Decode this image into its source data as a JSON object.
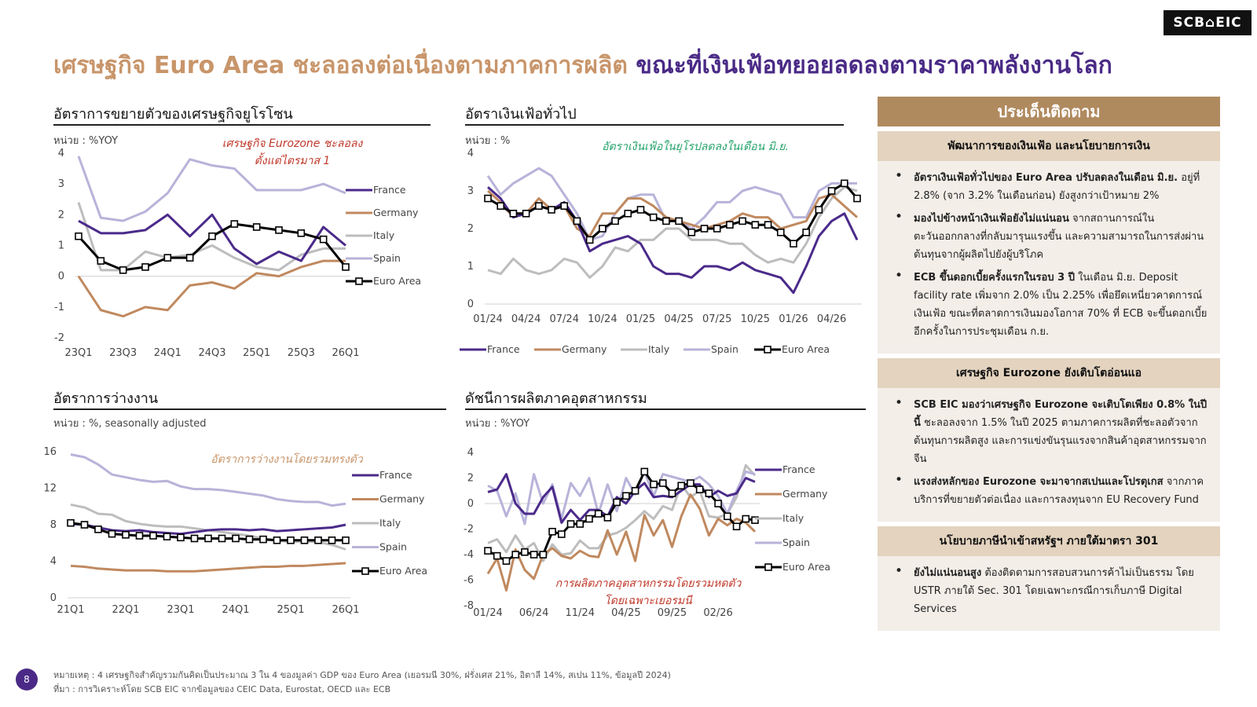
{
  "logo": "SCB⌂EIC",
  "title": {
    "part1": "เศรษฐกิจ Euro Area ชะลอลงต่อเนื่องตามภาคการผลิต",
    "part2": "ขณะที่เงินเฟ้อทยอยลดลงตามราคาพลังงานโลก"
  },
  "panels": {
    "gdp": {
      "title": "อัตราการขยายตัวของเศรษฐกิจยูโรโซน",
      "unit": "หน่วย : %YOY",
      "annotation": [
        "เศรษฐกิจ Eurozone ชะลอลง",
        "ตั้งแต่ไตรมาส 1"
      ]
    },
    "cpi": {
      "title": "อัตราเงินเฟ้อทั่วไป",
      "unit": "หน่วย : %",
      "annotation": [
        "อัตราเงินเฟ้อในยุโรปลดลงในเดือน มิ.ย."
      ]
    },
    "unemp": {
      "title": "อัตราการว่างงาน",
      "unit": "หน่วย : %, seasonally adjusted",
      "annotation": [
        "อัตราการว่างงานโดยรวมทรงตัว"
      ]
    },
    "ip": {
      "title": "ดัชนีการผลิตภาคอุตสาหกรรม",
      "unit": "หน่วย : %YOY",
      "annotation": [
        "การผลิตภาคอุตสาหกรรมโดยรวมหดตัว",
        "โดยเฉพาะเยอรมนี"
      ]
    }
  },
  "colors": {
    "France": "#4b2a8a",
    "Germany": "#c0895f",
    "Italy": "#bdbdbd",
    "Spain": "#b7b3d9",
    "Euro Area": "#000000"
  },
  "chart_data": [
    {
      "id": "gdp",
      "type": "line",
      "x": [
        "23Q1",
        "23Q2",
        "23Q3",
        "23Q4",
        "24Q1",
        "24Q2",
        "24Q3",
        "24Q4",
        "25Q1",
        "25Q2",
        "25Q3",
        "25Q4",
        "26Q1"
      ],
      "xticks": [
        "23Q1",
        "23Q3",
        "24Q1",
        "24Q3",
        "25Q1",
        "25Q3",
        "26Q1"
      ],
      "ylim": [
        -2,
        4
      ],
      "yticks": [
        4,
        3,
        2,
        1,
        0,
        -1,
        -2
      ],
      "legend_position": "right",
      "series": [
        {
          "name": "France",
          "values": [
            1.8,
            1.4,
            1.4,
            1.5,
            2.0,
            1.3,
            2.0,
            0.9,
            0.4,
            0.8,
            0.5,
            1.6,
            1.0
          ]
        },
        {
          "name": "Germany",
          "values": [
            0.0,
            -1.1,
            -1.3,
            -1.0,
            -1.1,
            -0.3,
            -0.2,
            -0.4,
            0.1,
            0.0,
            0.3,
            0.5,
            0.5
          ]
        },
        {
          "name": "Italy",
          "values": [
            2.4,
            0.2,
            0.2,
            0.8,
            0.6,
            0.7,
            1.0,
            0.6,
            0.3,
            0.2,
            0.7,
            0.9,
            0.9
          ]
        },
        {
          "name": "Spain",
          "values": [
            3.9,
            1.9,
            1.8,
            2.1,
            2.7,
            3.8,
            3.6,
            3.5,
            2.8,
            2.8,
            2.8,
            3.0,
            2.7
          ]
        },
        {
          "name": "Euro Area",
          "values": [
            1.3,
            0.5,
            0.2,
            0.3,
            0.6,
            0.6,
            1.3,
            1.7,
            1.6,
            1.5,
            1.4,
            1.2,
            0.3
          ]
        }
      ]
    },
    {
      "id": "cpi",
      "type": "line",
      "x": [
        "01/24",
        "02/24",
        "03/24",
        "04/24",
        "05/24",
        "06/24",
        "07/24",
        "08/24",
        "09/24",
        "10/24",
        "11/24",
        "12/24",
        "01/25",
        "02/25",
        "03/25",
        "04/25",
        "05/25",
        "06/25",
        "07/25",
        "08/25",
        "09/25",
        "10/25",
        "11/25",
        "12/25",
        "01/26",
        "02/26",
        "03/26",
        "04/26",
        "05/26",
        "06/26"
      ],
      "xticks": [
        "01/24",
        "04/24",
        "07/24",
        "10/24",
        "01/25",
        "04/25",
        "07/25",
        "10/25",
        "01/26",
        "04/26"
      ],
      "ylim": [
        0,
        4
      ],
      "yticks": [
        4,
        3,
        2,
        1,
        0
      ],
      "legend_position": "bottom",
      "series": [
        {
          "name": "France",
          "values": [
            3.1,
            2.8,
            2.3,
            2.4,
            2.6,
            2.5,
            2.7,
            2.2,
            1.4,
            1.6,
            1.7,
            1.8,
            1.6,
            1.0,
            0.8,
            0.8,
            0.7,
            1.0,
            1.0,
            0.9,
            1.1,
            0.9,
            0.8,
            0.7,
            0.3,
            1.0,
            1.8,
            2.2,
            2.4,
            1.7
          ]
        },
        {
          "name": "Germany",
          "values": [
            3.0,
            2.7,
            2.3,
            2.4,
            2.8,
            2.5,
            2.6,
            2.0,
            1.8,
            2.4,
            2.4,
            2.8,
            2.8,
            2.6,
            2.3,
            2.2,
            2.1,
            2.0,
            2.1,
            2.2,
            2.4,
            2.3,
            2.3,
            2.0,
            2.1,
            2.2,
            2.8,
            2.9,
            2.6,
            2.3
          ]
        },
        {
          "name": "Italy",
          "values": [
            0.9,
            0.8,
            1.2,
            0.9,
            0.8,
            0.9,
            1.2,
            1.1,
            0.7,
            1.0,
            1.5,
            1.4,
            1.7,
            1.7,
            2.0,
            2.0,
            1.7,
            1.7,
            1.7,
            1.6,
            1.6,
            1.3,
            1.1,
            1.2,
            1.1,
            1.6,
            2.3,
            2.8,
            3.1,
            3.0
          ]
        },
        {
          "name": "Spain",
          "values": [
            3.4,
            2.9,
            3.2,
            3.4,
            3.6,
            3.4,
            2.9,
            2.4,
            1.7,
            1.8,
            2.4,
            2.8,
            2.9,
            2.9,
            2.2,
            2.2,
            2.0,
            2.3,
            2.7,
            2.7,
            3.0,
            3.1,
            3.0,
            2.9,
            2.3,
            2.3,
            3.0,
            3.2,
            3.2,
            3.2
          ]
        },
        {
          "name": "Euro Area",
          "values": [
            2.8,
            2.6,
            2.4,
            2.4,
            2.6,
            2.5,
            2.6,
            2.2,
            1.7,
            2.0,
            2.2,
            2.4,
            2.5,
            2.3,
            2.2,
            2.2,
            1.9,
            2.0,
            2.0,
            2.1,
            2.2,
            2.1,
            2.1,
            1.9,
            1.6,
            1.9,
            2.5,
            3.0,
            3.2,
            2.8
          ]
        }
      ]
    },
    {
      "id": "unemp",
      "type": "line",
      "x": [
        "21Q1",
        "21Q2",
        "21Q3",
        "21Q4",
        "22Q1",
        "22Q2",
        "22Q3",
        "22Q4",
        "23Q1",
        "23Q2",
        "23Q3",
        "23Q4",
        "24Q1",
        "24Q2",
        "24Q3",
        "24Q4",
        "25Q1",
        "25Q2",
        "25Q3",
        "25Q4",
        "26Q1"
      ],
      "xticks": [
        "21Q1",
        "22Q1",
        "23Q1",
        "24Q1",
        "25Q1",
        "26Q1"
      ],
      "ylim": [
        0,
        16
      ],
      "yticks": [
        16,
        12,
        8,
        4,
        0
      ],
      "legend_position": "right",
      "series": [
        {
          "name": "France",
          "values": [
            8.1,
            8.0,
            7.7,
            7.4,
            7.3,
            7.4,
            7.2,
            7.1,
            7.0,
            7.2,
            7.4,
            7.5,
            7.5,
            7.4,
            7.5,
            7.3,
            7.4,
            7.5,
            7.6,
            7.7,
            8.0
          ]
        },
        {
          "name": "Germany",
          "values": [
            3.5,
            3.4,
            3.2,
            3.1,
            3.0,
            3.0,
            3.0,
            2.9,
            2.9,
            2.9,
            3.0,
            3.1,
            3.2,
            3.3,
            3.4,
            3.4,
            3.5,
            3.5,
            3.6,
            3.7,
            3.8
          ]
        },
        {
          "name": "Italy",
          "values": [
            10.2,
            9.9,
            9.2,
            9.1,
            8.4,
            8.1,
            7.9,
            7.8,
            7.8,
            7.6,
            7.4,
            7.2,
            7.0,
            6.8,
            6.5,
            6.3,
            6.1,
            6.2,
            6.1,
            5.8,
            5.3
          ]
        },
        {
          "name": "Spain",
          "values": [
            15.7,
            15.4,
            14.6,
            13.5,
            13.2,
            12.9,
            12.7,
            12.8,
            12.2,
            11.9,
            11.9,
            11.8,
            11.6,
            11.4,
            11.2,
            10.8,
            10.6,
            10.5,
            10.5,
            10.1,
            10.3
          ]
        },
        {
          "name": "Euro Area",
          "values": [
            8.2,
            8.0,
            7.5,
            7.0,
            6.9,
            6.8,
            6.8,
            6.7,
            6.6,
            6.5,
            6.5,
            6.5,
            6.5,
            6.4,
            6.4,
            6.3,
            6.3,
            6.3,
            6.3,
            6.3,
            6.3
          ]
        }
      ]
    },
    {
      "id": "ip",
      "type": "line",
      "x": [
        "01/24",
        "02/24",
        "03/24",
        "04/24",
        "05/24",
        "06/24",
        "07/24",
        "08/24",
        "09/24",
        "10/24",
        "11/24",
        "12/24",
        "01/25",
        "02/25",
        "03/25",
        "04/25",
        "05/25",
        "06/25",
        "07/25",
        "08/25",
        "09/25",
        "10/25",
        "11/25",
        "12/25",
        "01/26",
        "02/26",
        "03/26",
        "04/26",
        "05/26",
        "06/26"
      ],
      "xticks": [
        "01/24",
        "06/24",
        "11/24",
        "04/25",
        "09/25",
        "02/26"
      ],
      "ylim": [
        -8,
        4
      ],
      "yticks": [
        4,
        2,
        0,
        -2,
        -4,
        -6,
        -8
      ],
      "legend_position": "right",
      "series": [
        {
          "name": "France",
          "values": [
            0.9,
            1.1,
            2.3,
            0.0,
            -0.8,
            -0.8,
            0.5,
            1.3,
            -1.5,
            -0.5,
            -1.3,
            -0.5,
            -0.5,
            -1.0,
            0.5,
            0.0,
            1.0,
            1.6,
            0.5,
            0.6,
            0.5,
            1.0,
            1.5,
            1.5,
            0.5,
            1.0,
            0.6,
            0.8,
            2.0,
            1.7
          ]
        },
        {
          "name": "Germany",
          "values": [
            -5.5,
            -4.3,
            -6.8,
            -3.6,
            -5.2,
            -5.9,
            -4.0,
            -3.5,
            -4.1,
            -4.3,
            -3.7,
            -4.1,
            -4.2,
            -2.1,
            -4.0,
            -2.2,
            -4.5,
            -0.9,
            -2.5,
            -1.3,
            -3.4,
            -1.0,
            0.7,
            -0.4,
            -2.5,
            -1.2,
            -1.7,
            -1.2,
            -1.5,
            -2.2
          ]
        },
        {
          "name": "Italy",
          "values": [
            -3.1,
            -2.8,
            -3.8,
            -2.5,
            -3.6,
            -3.1,
            -4.5,
            -3.2,
            -4.0,
            -3.9,
            -2.9,
            -3.5,
            -3.5,
            -2.5,
            -2.3,
            -1.9,
            -1.3,
            -0.6,
            -1.2,
            -0.2,
            -0.5,
            1.5,
            0.5,
            1.0,
            -1.0,
            -1.1,
            -0.8,
            0.5,
            3.0,
            2.2
          ]
        },
        {
          "name": "Spain",
          "values": [
            1.4,
            1.0,
            -1.0,
            0.8,
            -1.6,
            2.3,
            0.0,
            1.5,
            -1.2,
            1.6,
            0.6,
            2.0,
            -0.8,
            1.5,
            -0.6,
            2.0,
            0.7,
            2.5,
            0.6,
            2.3,
            2.1,
            1.9,
            1.7,
            2.1,
            1.5,
            0.6,
            -0.8,
            1.0,
            2.5,
            2.3
          ]
        },
        {
          "name": "Euro Area",
          "values": [
            -3.7,
            -4.1,
            -4.5,
            -4.0,
            -3.8,
            -4.0,
            -4.0,
            -2.2,
            -2.4,
            -1.6,
            -1.6,
            -1.2,
            -0.8,
            -1.1,
            0.1,
            0.6,
            1.0,
            2.5,
            1.5,
            1.6,
            0.8,
            1.4,
            1.6,
            1.1,
            0.8,
            0.0,
            -1.0,
            -1.8,
            -1.2,
            -1.3
          ]
        }
      ]
    }
  ],
  "sidebar": {
    "header": "ประเด็นติดตาม",
    "sections": [
      {
        "heading": "พัฒนาการของเงินเฟ้อ และนโยบายการเงิน",
        "bullets": [
          {
            "bold": "อัตราเงินเฟ้อทั่วไปของ Euro Area ปรับลดลงในเดือน มิ.ย.",
            "text": " อยู่ที่ 2.8% (จาก 3.2% ในเดือนก่อน) ยังสูงกว่าเป้าหมาย 2%"
          },
          {
            "bold": "มองไปข้างหน้าเงินเฟ้อยังไม่แน่นอน",
            "text": " จากสถานการณ์ในตะวันออกกลางที่กลับมารุนแรงขึ้น และความสามารถในการส่งผ่านต้นทุนจากผู้ผลิตไปยังผู้บริโภค"
          },
          {
            "bold": "ECB ขึ้นดอกเบี้ยครั้งแรกในรอบ 3 ปี",
            "text": " ในเดือน มิ.ย. Deposit facility rate เพิ่มจาก 2.0% เป็น 2.25% เพื่อยึดเหนี่ยวคาดการณ์เงินเฟ้อ ขณะที่ตลาดการเงินมองโอกาส 70% ที่ ECB จะขึ้นดอกเบี้ยอีกครั้งในการประชุมเดือน ก.ย."
          }
        ]
      },
      {
        "heading": "เศรษฐกิจ Eurozone ยังเติบโตอ่อนแอ",
        "bullets": [
          {
            "bold": "SCB EIC มองว่าเศรษฐกิจ Eurozone จะเติบโตเพียง 0.8% ในปีนี้",
            "text": " ชะลอลงจาก 1.5% ในปี 2025 ตามภาคการผลิตที่ชะลอตัวจากต้นทุนการผลิตสูง และการแข่งขันรุนแรงจากสินค้าอุตสาหกรรมจากจีน"
          },
          {
            "bold": "แรงส่งหลักของ Eurozone จะมาจากสเปนและโปรตุเกส",
            "text": " จากภาคบริการที่ขยายตัวต่อเนื่อง และการลงทุนจาก EU Recovery Fund"
          }
        ]
      },
      {
        "heading": "นโยบายภาษีนำเข้าสหรัฐฯ ภายใต้มาตรา 301",
        "bullets": [
          {
            "bold": "ยังไม่แน่นอนสูง",
            "text": " ต้องติดตามการสอบสวนการค้าไม่เป็นธรรม โดย USTR ภายใต้ Sec. 301 โดยเฉพาะกรณีการเก็บภาษี Digital Services"
          }
        ]
      }
    ]
  },
  "footnotes": {
    "note": "หมายเหตุ : 4 เศรษฐกิจสำคัญรวมกันคิดเป็นประมาณ 3 ใน 4 ของมูลค่า GDP ของ Euro Area (เยอรมนี 30%, ฝรั่งเศส 21%, อิตาลี 14%, สเปน 11%, ข้อมูลปี 2024)",
    "source": "ที่มา : การวิเคราะห์โดย SCB EIC จากข้อมูลของ CEIC Data, Eurostat, OECD และ ECB"
  },
  "page_number": "8"
}
